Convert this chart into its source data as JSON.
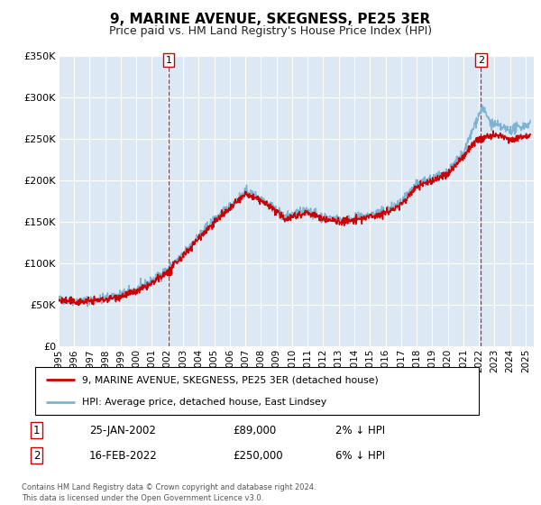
{
  "title": "9, MARINE AVENUE, SKEGNESS, PE25 3ER",
  "subtitle": "Price paid vs. HM Land Registry's House Price Index (HPI)",
  "title_fontsize": 11,
  "subtitle_fontsize": 9.5,
  "ylim": [
    0,
    350000
  ],
  "xlim_start": 1995.0,
  "xlim_end": 2025.5,
  "yticks": [
    0,
    50000,
    100000,
    150000,
    200000,
    250000,
    300000,
    350000
  ],
  "ytick_labels": [
    "£0",
    "£50K",
    "£100K",
    "£150K",
    "£200K",
    "£250K",
    "£300K",
    "£350K"
  ],
  "xticks": [
    1995,
    1996,
    1997,
    1998,
    1999,
    2000,
    2001,
    2002,
    2003,
    2004,
    2005,
    2006,
    2007,
    2008,
    2009,
    2010,
    2011,
    2012,
    2013,
    2014,
    2015,
    2016,
    2017,
    2018,
    2019,
    2020,
    2021,
    2022,
    2023,
    2024,
    2025
  ],
  "background_color": "#dce9f5",
  "grid_color": "#ffffff",
  "red_line_color": "#cc0000",
  "blue_line_color": "#7fb3d3",
  "marker1_x": 2002.07,
  "marker1_y": 89000,
  "marker2_x": 2022.12,
  "marker2_y": 250000,
  "vline1_x": 2002.07,
  "vline2_x": 2022.12,
  "legend_label_red": "9, MARINE AVENUE, SKEGNESS, PE25 3ER (detached house)",
  "legend_label_blue": "HPI: Average price, detached house, East Lindsey",
  "table_row1": [
    "1",
    "25-JAN-2002",
    "£89,000",
    "2% ↓ HPI"
  ],
  "table_row2": [
    "2",
    "16-FEB-2022",
    "£250,000",
    "6% ↓ HPI"
  ],
  "footer": "Contains HM Land Registry data © Crown copyright and database right 2024.\nThis data is licensed under the Open Government Licence v3.0."
}
